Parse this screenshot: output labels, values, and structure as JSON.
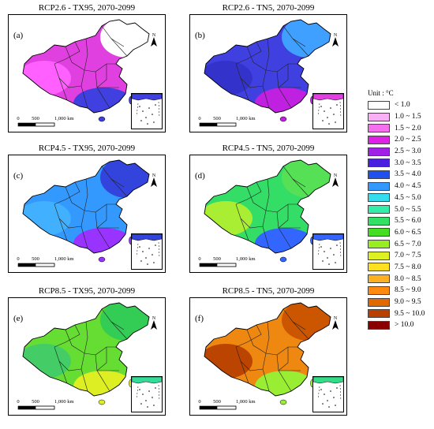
{
  "panels": [
    {
      "id": "a",
      "letter": "(a)",
      "title": "RCP2.6 - TX95, 2070-2099",
      "main_color": "#e040e0",
      "north_color": "#ffffff",
      "south_color": "#4040e0",
      "west_color": "#ff60ff",
      "inset_color": "#4040e0"
    },
    {
      "id": "b",
      "letter": "(b)",
      "title": "RCP2.6 - TN5, 2070-2099",
      "main_color": "#4040e0",
      "north_color": "#40a0ff",
      "south_color": "#c020e0",
      "west_color": "#3333cc",
      "inset_color": "#e040e0"
    },
    {
      "id": "c",
      "letter": "(c)",
      "title": "RCP4.5 - TX95, 2070-2099",
      "main_color": "#3399ff",
      "north_color": "#3344dd",
      "south_color": "#9933ff",
      "west_color": "#40b0ff",
      "inset_color": "#3344dd"
    },
    {
      "id": "d",
      "letter": "(d)",
      "title": "RCP4.5 - TN5, 2070-2099",
      "main_color": "#33dd66",
      "north_color": "#55e055",
      "south_color": "#3366ff",
      "west_color": "#aaee33",
      "inset_color": "#3366ff"
    },
    {
      "id": "e",
      "letter": "(e)",
      "title": "RCP8.5 - TX95, 2070-2099",
      "main_color": "#66dd33",
      "north_color": "#33cc55",
      "south_color": "#ddee22",
      "west_color": "#44cc66",
      "inset_color": "#33dd99"
    },
    {
      "id": "f",
      "letter": "(f)",
      "title": "RCP8.5 - TN5, 2070-2099",
      "main_color": "#ee8811",
      "north_color": "#cc5500",
      "south_color": "#99ee33",
      "west_color": "#bb4400",
      "inset_color": "#33dd88"
    }
  ],
  "scalebar": {
    "zero": "0",
    "mid": "500",
    "end": "1,000 km"
  },
  "north_label": "N",
  "legend": {
    "title": "Unit : °C",
    "items": [
      {
        "label": "< 1.0",
        "color": "#ffffff"
      },
      {
        "label": "1.0 ~ 1.5",
        "color": "#f9b0f5"
      },
      {
        "label": "1.5 ~ 2.0",
        "color": "#f570ee"
      },
      {
        "label": "2.0 ~ 2.5",
        "color": "#e020e6"
      },
      {
        "label": "2.5 ~ 3.0",
        "color": "#a020e8"
      },
      {
        "label": "3.0 ~ 3.5",
        "color": "#4a20e0"
      },
      {
        "label": "3.5 ~ 4.0",
        "color": "#2050f0"
      },
      {
        "label": "4.0 ~ 4.5",
        "color": "#3399ff"
      },
      {
        "label": "4.5 ~ 5.0",
        "color": "#33ddee"
      },
      {
        "label": "5.0 ~ 5.5",
        "color": "#33eeaa"
      },
      {
        "label": "5.5 ~ 6.0",
        "color": "#33e066"
      },
      {
        "label": "6.0 ~ 6.5",
        "color": "#44dd22"
      },
      {
        "label": "6.5 ~ 7.0",
        "color": "#99ee22"
      },
      {
        "label": "7.0 ~ 7.5",
        "color": "#ddf022"
      },
      {
        "label": "7.5 ~ 8.0",
        "color": "#ffe020"
      },
      {
        "label": "8.0 ~ 8.5",
        "color": "#ffb020"
      },
      {
        "label": "8.5 ~ 9.0",
        "color": "#ff8a10"
      },
      {
        "label": "9.0 ~ 9.5",
        "color": "#e06a00"
      },
      {
        "label": "9.5 ~ 10.0",
        "color": "#b84000"
      },
      {
        "label": "> 10.0",
        "color": "#8a0000"
      }
    ]
  }
}
